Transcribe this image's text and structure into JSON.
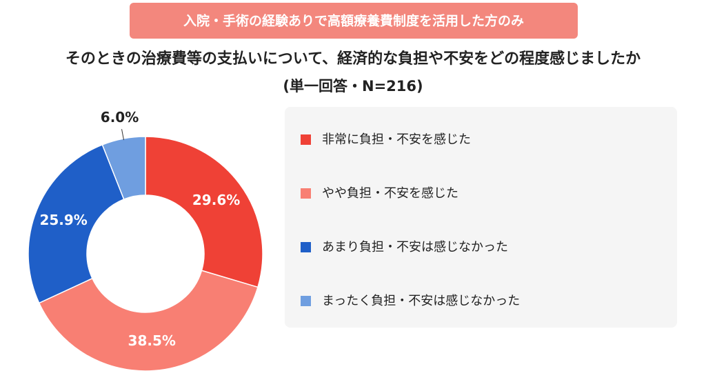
{
  "chart_data": {
    "type": "donut",
    "annotation": "入院・手術の経験ありで高額療養費制度を活用した方のみ",
    "title": "そのときの治療費等の支払いについて、経済的な負担や不安をどの程度感じましたか",
    "subtitle": "(単一回答・N=216)",
    "categories": [
      "非常に負担・不安を感じた",
      "やや負担・不安を感じた",
      "あまり負担・不安は感じなかった",
      "まったく負担・不安は感じなかった"
    ],
    "values": [
      29.6,
      38.5,
      25.9,
      6.0
    ],
    "value_labels": [
      "29.6%",
      "38.5%",
      "25.9%",
      "6.0%"
    ],
    "colors": [
      "#ef4136",
      "#f87f73",
      "#1f5fc8",
      "#6f9ee0"
    ],
    "legend": "right"
  }
}
